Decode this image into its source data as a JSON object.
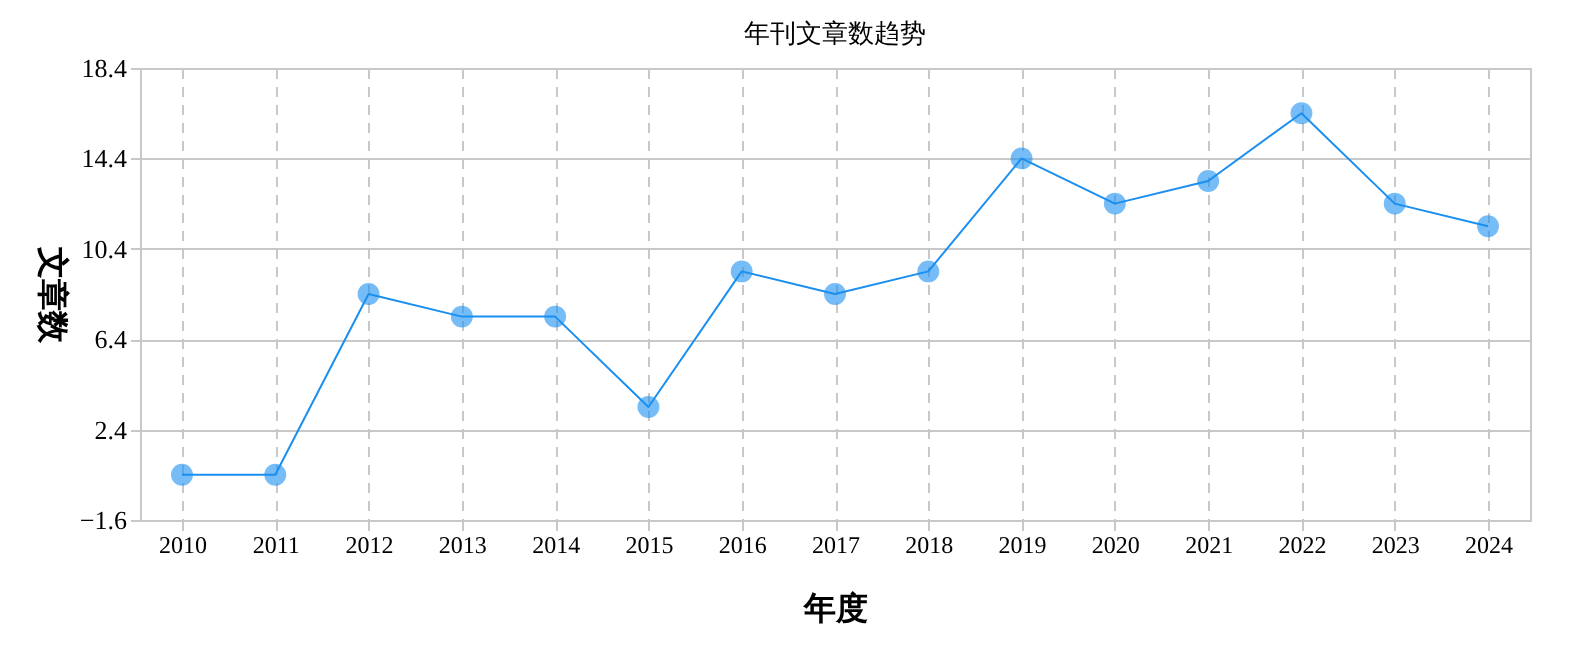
{
  "chart_data": {
    "type": "line",
    "title": "年刊文章数趋势",
    "xlabel": "年度",
    "ylabel": "文章数",
    "categories": [
      "2010",
      "2011",
      "2012",
      "2013",
      "2014",
      "2015",
      "2016",
      "2017",
      "2018",
      "2019",
      "2020",
      "2021",
      "2022",
      "2023",
      "2024"
    ],
    "series": [
      {
        "color": "#1a8ff0",
        "values": [
          0.4,
          0.4,
          8.4,
          7.4,
          7.4,
          3.4,
          9.4,
          8.4,
          9.4,
          14.4,
          12.4,
          13.4,
          16.4,
          12.4,
          11.4
        ]
      }
    ],
    "ylim": [
      -1.6,
      18.4
    ],
    "yticks": [
      -1.6,
      2.4,
      6.4,
      10.4,
      14.4,
      18.4
    ],
    "grid": true,
    "marker": "circle",
    "line_style": "solid"
  }
}
